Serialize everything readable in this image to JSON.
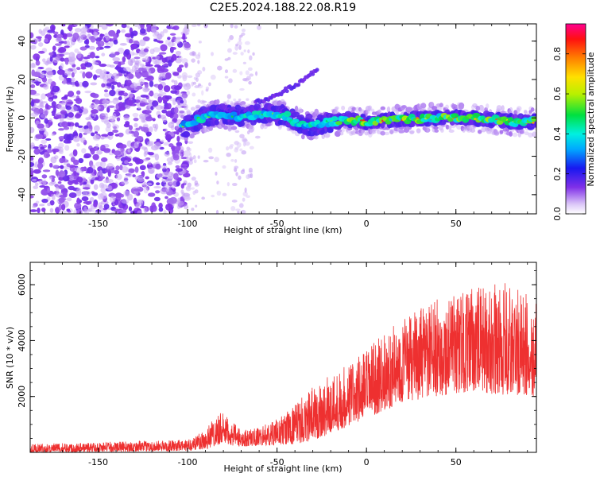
{
  "figure_title": "C2E5.2024.188.22.08.R19",
  "chart_data": [
    {
      "type": "heatmap",
      "xlabel": "Height of straight line (km)",
      "ylabel": "Frequency (Hz)",
      "xlim": [
        -188,
        95
      ],
      "ylim": [
        -50,
        49
      ],
      "x_ticks": [
        -150,
        -100,
        -50,
        0,
        50
      ],
      "y_ticks": [
        -40,
        -20,
        0,
        20,
        40
      ],
      "grid": false,
      "colorbar": {
        "label": "Normalized spectral amplitude",
        "range": [
          0,
          0.95
        ],
        "ticks": [
          0.0,
          0.2,
          0.4,
          0.6,
          0.8
        ]
      },
      "ridge": [
        {
          "x": -103,
          "y": -5
        },
        {
          "x": -95,
          "y": -1
        },
        {
          "x": -85,
          "y": 2
        },
        {
          "x": -75,
          "y": 1
        },
        {
          "x": -65,
          "y": 1
        },
        {
          "x": -55,
          "y": 2
        },
        {
          "x": -45,
          "y": 1
        },
        {
          "x": -38,
          "y": -3
        },
        {
          "x": -30,
          "y": -4
        },
        {
          "x": -20,
          "y": -2
        },
        {
          "x": -10,
          "y": -1
        },
        {
          "x": 0,
          "y": -2
        },
        {
          "x": 20,
          "y": -1
        },
        {
          "x": 40,
          "y": 0
        },
        {
          "x": 60,
          "y": 0
        },
        {
          "x": 80,
          "y": -2
        },
        {
          "x": 95,
          "y": -2
        }
      ],
      "branch": [
        {
          "x": -62,
          "y": 8
        },
        {
          "x": -50,
          "y": 12
        },
        {
          "x": -38,
          "y": 18
        },
        {
          "x": -28,
          "y": 25
        }
      ]
    },
    {
      "type": "line",
      "xlabel": "Height of straight line (km)",
      "ylabel": "SNR (10 * v/v)",
      "xlim": [
        -188,
        95
      ],
      "ylim": [
        0,
        6800
      ],
      "x_ticks": [
        -150,
        -100,
        -50,
        0,
        50
      ],
      "y_ticks": [
        2000,
        4000,
        6000
      ],
      "grid": false,
      "color": "#ee3030",
      "envelope": [
        {
          "x": -188,
          "low": 0,
          "high": 300
        },
        {
          "x": -100,
          "low": 50,
          "high": 450
        },
        {
          "x": -90,
          "low": 100,
          "high": 900
        },
        {
          "x": -82,
          "low": 300,
          "high": 1500
        },
        {
          "x": -70,
          "low": 200,
          "high": 800
        },
        {
          "x": -60,
          "low": 250,
          "high": 900
        },
        {
          "x": -50,
          "low": 250,
          "high": 1200
        },
        {
          "x": -40,
          "low": 300,
          "high": 1700
        },
        {
          "x": -30,
          "low": 400,
          "high": 2400
        },
        {
          "x": -15,
          "low": 800,
          "high": 3000
        },
        {
          "x": 0,
          "low": 1200,
          "high": 3700
        },
        {
          "x": 20,
          "low": 1800,
          "high": 4800
        },
        {
          "x": 40,
          "low": 2000,
          "high": 5500
        },
        {
          "x": 60,
          "low": 2200,
          "high": 5900
        },
        {
          "x": 80,
          "low": 2000,
          "high": 6100
        },
        {
          "x": 95,
          "low": 2000,
          "high": 5400
        }
      ]
    }
  ]
}
